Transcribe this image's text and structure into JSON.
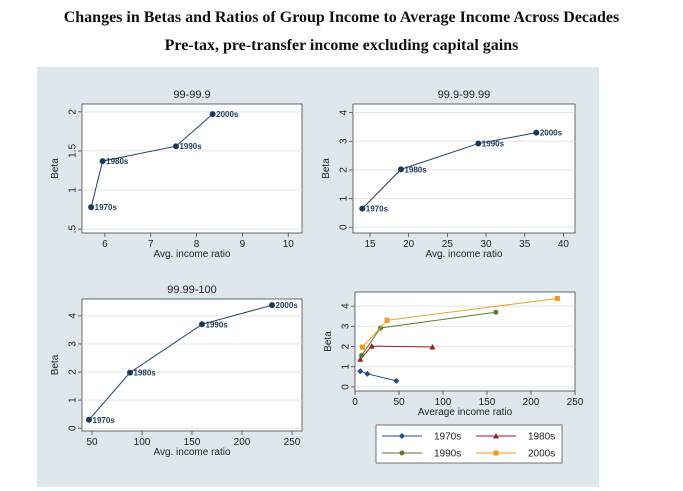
{
  "title": "Changes in Betas and Ratios of Group Income to Average Income Across Decades",
  "subtitle": "Pre-tax, pre-transfer income excluding capital gains",
  "chart_data": [
    {
      "type": "line",
      "title": "99-99.9",
      "xlabel": "Avg. income ratio",
      "ylabel": "Beta",
      "xlim": [
        5.5,
        10.3
      ],
      "ylim": [
        0.45,
        2.1
      ],
      "xticks": [
        6,
        7,
        8,
        9,
        10
      ],
      "yticks": [
        0.5,
        1,
        1.5,
        2
      ],
      "ytick_labels": [
        ".5",
        "1",
        "1.5",
        "2"
      ],
      "points": [
        {
          "label": "1970s",
          "x": 5.7,
          "y": 0.78
        },
        {
          "label": "1980s",
          "x": 5.95,
          "y": 1.37
        },
        {
          "label": "1990s",
          "x": 7.55,
          "y": 1.56
        },
        {
          "label": "2000s",
          "x": 8.35,
          "y": 1.97
        }
      ]
    },
    {
      "type": "line",
      "title": "99.9-99.99",
      "xlabel": "Avg. income ratio",
      "ylabel": "Beta",
      "xlim": [
        12.8,
        41.5
      ],
      "ylim": [
        -0.2,
        4.3
      ],
      "xticks": [
        15,
        20,
        25,
        30,
        35,
        40
      ],
      "yticks": [
        0,
        1,
        2,
        3,
        4
      ],
      "ytick_labels": [
        "0",
        "1",
        "2",
        "3",
        "4"
      ],
      "points": [
        {
          "label": "1970s",
          "x": 14,
          "y": 0.65
        },
        {
          "label": "1980s",
          "x": 19,
          "y": 2.02
        },
        {
          "label": "1990s",
          "x": 29,
          "y": 2.92
        },
        {
          "label": "2000s",
          "x": 36.5,
          "y": 3.3
        }
      ]
    },
    {
      "type": "line",
      "title": "99.99-100",
      "xlabel": "Avg. income ratio",
      "ylabel": "Beta",
      "xlim": [
        40,
        260
      ],
      "ylim": [
        -0.1,
        4.6
      ],
      "xticks": [
        50,
        100,
        150,
        200,
        250
      ],
      "yticks": [
        0,
        1,
        2,
        3,
        4
      ],
      "ytick_labels": [
        "0",
        "1",
        "2",
        "3",
        "4"
      ],
      "points": [
        {
          "label": "1970s",
          "x": 47,
          "y": 0.3
        },
        {
          "label": "1980s",
          "x": 88,
          "y": 1.98
        },
        {
          "label": "1990s",
          "x": 160,
          "y": 3.7
        },
        {
          "label": "2000s",
          "x": 230,
          "y": 4.38
        }
      ]
    },
    {
      "type": "line",
      "title": "",
      "xlabel": "Average income ratio",
      "ylabel": "Beta",
      "xlim": [
        0,
        250
      ],
      "ylim": [
        -0.2,
        4.7
      ],
      "xticks": [
        0,
        50,
        100,
        150,
        200,
        250
      ],
      "yticks": [
        0,
        1,
        2,
        3,
        4
      ],
      "ytick_labels": [
        "0",
        "1",
        "2",
        "3",
        "4"
      ],
      "legend_position": "below",
      "series": [
        {
          "name": "1970s",
          "color": "#1f4e8c",
          "marker": "diamond",
          "x": [
            6,
            14,
            47
          ],
          "y": [
            0.78,
            0.65,
            0.3
          ]
        },
        {
          "name": "1980s",
          "color": "#9c1f1f",
          "marker": "triangle",
          "x": [
            6,
            19,
            88
          ],
          "y": [
            1.37,
            2.02,
            1.98
          ]
        },
        {
          "name": "1990s",
          "color": "#5a7a2e",
          "marker": "circle",
          "x": [
            7.5,
            29,
            160
          ],
          "y": [
            1.56,
            2.92,
            3.7
          ]
        },
        {
          "name": "2000s",
          "color": "#f29a1c",
          "marker": "square",
          "x": [
            8.5,
            36.5,
            230
          ],
          "y": [
            1.97,
            3.3,
            4.38
          ]
        }
      ]
    }
  ]
}
